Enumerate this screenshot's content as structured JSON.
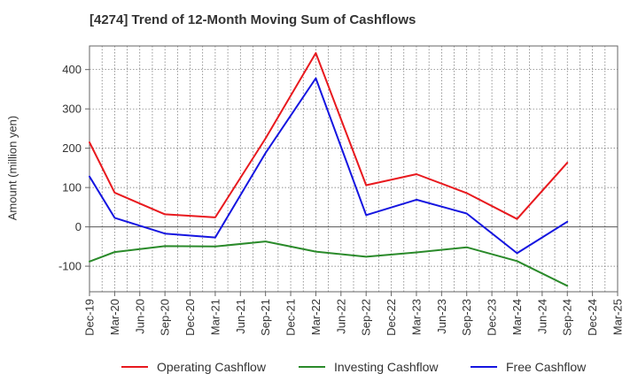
{
  "colors": {
    "operating": "#e8191e",
    "investing": "#2a8a2a",
    "free": "#1515e0",
    "grid": "#6b6b6b",
    "axis": "#666666"
  },
  "chart_data": {
    "type": "line",
    "title": "[4274]  Trend of 12-Month Moving Sum of Cashflows",
    "xlabel": "",
    "ylabel": "Amount (million yen)",
    "ylim": [
      -165,
      460
    ],
    "y_ticks": [
      -100,
      0,
      100,
      200,
      300,
      400
    ],
    "y_tick_labels": [
      "-100",
      "0",
      "100",
      "200",
      "300",
      "400"
    ],
    "x": [
      "Dec-19",
      "Mar-20",
      "Jun-20",
      "Sep-20",
      "Dec-20",
      "Mar-21",
      "Jun-21",
      "Sep-21",
      "Dec-21",
      "Mar-22",
      "Jun-22",
      "Sep-22",
      "Dec-22",
      "Mar-23",
      "Jun-23",
      "Sep-23",
      "Dec-23",
      "Mar-24",
      "Jun-24",
      "Sep-24",
      "Dec-24",
      "Mar-25"
    ],
    "grid": true,
    "legend_position": "bottom",
    "series": [
      {
        "name": "Operating Cashflow",
        "color_key": "operating",
        "points": [
          {
            "x": "Dec-19",
            "y": 215
          },
          {
            "x": "Mar-20",
            "y": 87
          },
          {
            "x": "Sep-20",
            "y": 32
          },
          {
            "x": "Mar-21",
            "y": 24
          },
          {
            "x": "Sep-21",
            "y": 225
          },
          {
            "x": "Mar-22",
            "y": 442
          },
          {
            "x": "Sep-22",
            "y": 106
          },
          {
            "x": "Mar-23",
            "y": 134
          },
          {
            "x": "Sep-23",
            "y": 86
          },
          {
            "x": "Mar-24",
            "y": 20
          },
          {
            "x": "Sep-24",
            "y": 163
          }
        ]
      },
      {
        "name": "Investing Cashflow",
        "color_key": "investing",
        "points": [
          {
            "x": "Dec-19",
            "y": -88
          },
          {
            "x": "Mar-20",
            "y": -64
          },
          {
            "x": "Sep-20",
            "y": -49
          },
          {
            "x": "Mar-21",
            "y": -50
          },
          {
            "x": "Sep-21",
            "y": -37
          },
          {
            "x": "Mar-22",
            "y": -63
          },
          {
            "x": "Sep-22",
            "y": -76
          },
          {
            "x": "Mar-23",
            "y": -65
          },
          {
            "x": "Sep-23",
            "y": -52
          },
          {
            "x": "Mar-24",
            "y": -87
          },
          {
            "x": "Sep-24",
            "y": -150
          }
        ]
      },
      {
        "name": "Free Cashflow",
        "color_key": "free",
        "points": [
          {
            "x": "Dec-19",
            "y": 128
          },
          {
            "x": "Mar-20",
            "y": 23
          },
          {
            "x": "Sep-20",
            "y": -17
          },
          {
            "x": "Mar-21",
            "y": -27
          },
          {
            "x": "Sep-21",
            "y": 188
          },
          {
            "x": "Mar-22",
            "y": 378
          },
          {
            "x": "Sep-22",
            "y": 30
          },
          {
            "x": "Mar-23",
            "y": 69
          },
          {
            "x": "Sep-23",
            "y": 34
          },
          {
            "x": "Mar-24",
            "y": -67
          },
          {
            "x": "Sep-24",
            "y": 13
          }
        ]
      }
    ]
  }
}
